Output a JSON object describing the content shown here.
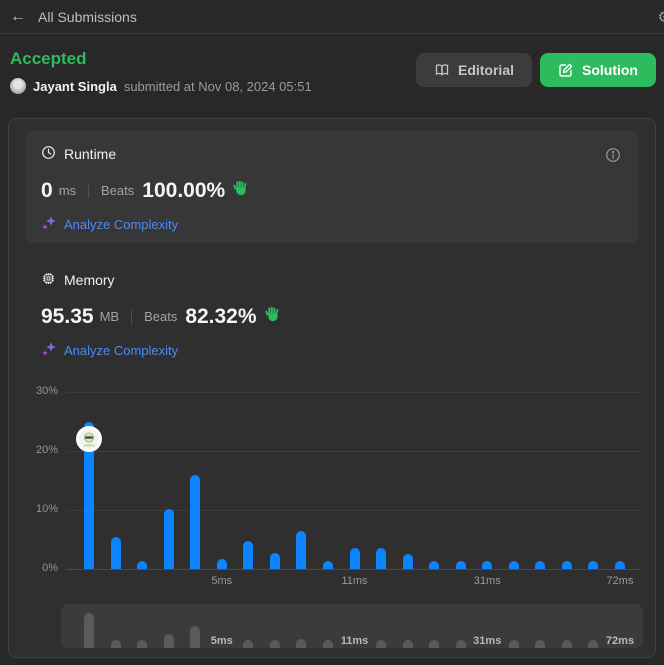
{
  "topbar": {
    "back_icon": "←",
    "title": "All Submissions",
    "gear_icon": "⚙"
  },
  "header": {
    "status": "Accepted",
    "username": "Jayant Singla",
    "submitted_text": "submitted at Nov 08, 2024 05:51",
    "buttons": {
      "editorial": "Editorial",
      "solution": "Solution"
    }
  },
  "runtime": {
    "title": "Runtime",
    "value": "0",
    "unit": "ms",
    "beats_label": "Beats",
    "beats_value": "100.00%",
    "analyze_label": "Analyze Complexity"
  },
  "memory": {
    "title": "Memory",
    "value": "95.35",
    "unit": "MB",
    "beats_label": "Beats",
    "beats_value": "82.32%",
    "analyze_label": "Analyze Complexity"
  },
  "icons": {
    "topbar": [
      "arrow-left-icon",
      "gear-icon"
    ],
    "runtime_title": "clock-icon",
    "memory_title": "chip-icon",
    "runtime_info": "info-circle-icon",
    "editorial_button": "book-open-icon",
    "solution_button": "pencil-square-icon",
    "analyze_link": "sparkles-icon",
    "beats_badge": "waving-hand-green-icon",
    "chart_marker": "user-avatar-marker"
  },
  "chart_data": {
    "type": "bar",
    "title": "",
    "xlabel": "",
    "ylabel": "",
    "ylim": [
      0,
      30
    ],
    "grid": true,
    "ytick_labels": [
      "30%",
      "20%",
      "10%",
      "0%"
    ],
    "x_ticks": [
      {
        "label": "5ms",
        "index": 5
      },
      {
        "label": "11ms",
        "index": 10
      },
      {
        "label": "31ms",
        "index": 15
      },
      {
        "label": "72ms",
        "index": 20
      }
    ],
    "values": [
      25,
      5.4,
      1.2,
      10.2,
      16,
      1.7,
      4.7,
      2.7,
      6.5,
      1.2,
      3.6,
      3.6,
      2.5,
      0.9,
      0.9,
      0.9,
      0.9,
      0.9,
      0.9,
      0.9,
      0.8
    ],
    "bar_color": "#0d84ff",
    "user_marker_index": 0,
    "minimap": {
      "bar_color": "#5a5a5a",
      "labels": [
        "5ms",
        "11ms",
        "31ms",
        "72ms"
      ]
    }
  },
  "colors": {
    "accent_green": "#2cbb5d",
    "bar_blue": "#0d84ff",
    "link_blue": "#4d8bf5",
    "sparkle_purple": "#b44df0"
  }
}
